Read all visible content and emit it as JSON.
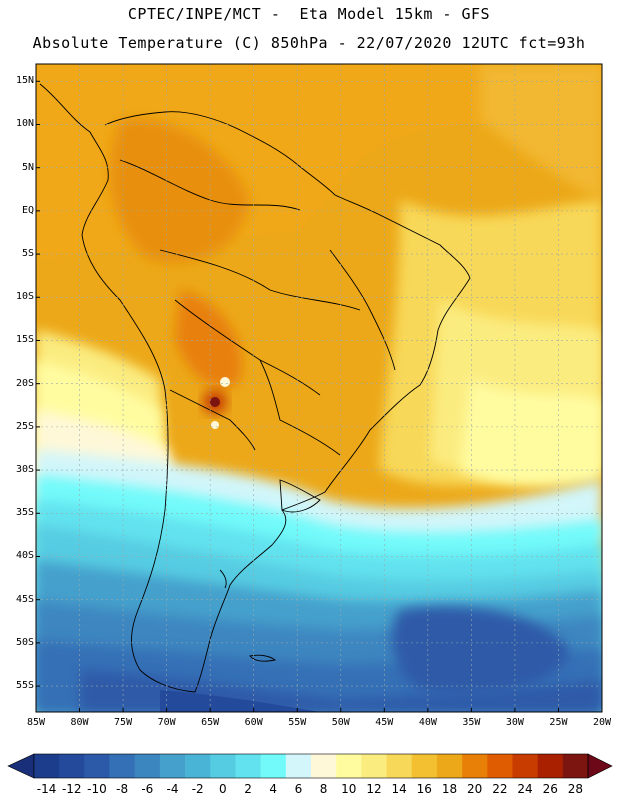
{
  "header": {
    "line1": "CPTEC/INPE/MCT -  Eta Model 15km - GFS",
    "line2": "Absolute Temperature (C) 850hPa - 22/07/2020 12UTC fct=93h"
  },
  "map": {
    "lat_labels": [
      "15N",
      "10N",
      "5N",
      "EQ",
      "5S",
      "10S",
      "15S",
      "20S",
      "25S",
      "30S",
      "35S",
      "40S",
      "45S",
      "50S",
      "55S"
    ],
    "lon_labels": [
      "85W",
      "80W",
      "75W",
      "70W",
      "65W",
      "60W",
      "55W",
      "50W",
      "45W",
      "40W",
      "35W",
      "30W",
      "25W",
      "20W"
    ],
    "lat_range": [
      -58,
      17
    ],
    "lon_range": [
      -85,
      -20
    ]
  },
  "colorbar": {
    "labels": [
      "-14",
      "-12",
      "-10",
      "-8",
      "-6",
      "-4",
      "-2",
      "0",
      "2",
      "4",
      "6",
      "8",
      "10",
      "12",
      "14",
      "16",
      "18",
      "20",
      "22",
      "24",
      "26",
      "28"
    ],
    "colors": [
      "#1c3c8c",
      "#244a9c",
      "#2d5aa8",
      "#3470b6",
      "#3c86c0",
      "#45a0cc",
      "#4ab4d6",
      "#56cce2",
      "#62e2ee",
      "#72fafa",
      "#d2f6fa",
      "#fff8d8",
      "#fffca0",
      "#fbec80",
      "#f8d858",
      "#f2c030",
      "#eca818",
      "#e88008",
      "#e05c00",
      "#c83c00",
      "#a82000",
      "#7c1410"
    ],
    "under_color": "#1a2f7a",
    "over_color": "#6c0818"
  }
}
